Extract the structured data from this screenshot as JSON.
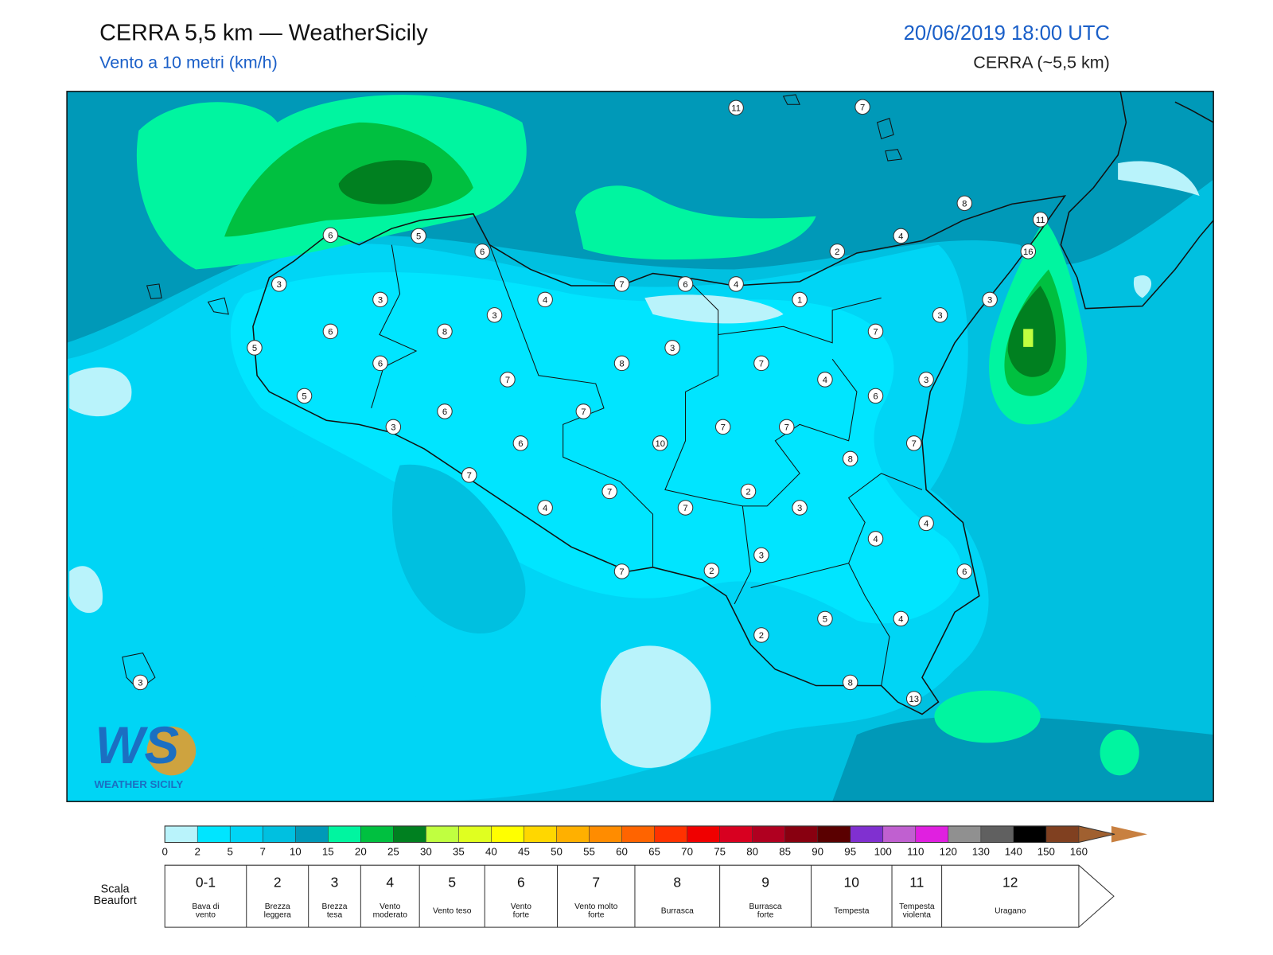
{
  "header": {
    "title": "CERRA 5,5 km — WeatherSicily",
    "subtitle": "Vento a 10 metri (km/h)",
    "date": "20/06/2019 18:00 UTC",
    "model": "CERRA (~5,5 km)"
  },
  "map": {
    "stations": [
      11,
      7,
      8,
      11,
      16,
      4,
      2,
      6,
      5,
      6,
      3,
      3,
      4,
      7,
      6,
      4,
      1,
      3,
      3,
      3,
      6,
      8,
      7,
      5,
      6,
      8,
      3,
      7,
      7,
      4,
      3,
      5,
      6,
      7,
      6,
      3,
      7,
      7,
      6,
      10,
      7,
      8,
      7,
      7,
      2,
      4,
      7,
      3,
      4,
      4,
      3,
      2,
      7,
      6,
      5,
      4,
      2,
      3,
      8,
      13
    ],
    "logo": {
      "mark": "WS",
      "text": "WEATHER SICILY"
    }
  },
  "colorbar": {
    "ticks": [
      0,
      2,
      5,
      7,
      10,
      15,
      20,
      25,
      30,
      35,
      40,
      45,
      50,
      55,
      60,
      65,
      70,
      75,
      80,
      85,
      90,
      95,
      100,
      110,
      120,
      130,
      140,
      150,
      160
    ],
    "colors": [
      "#b9f3fb",
      "#00e5ff",
      "#00d5f5",
      "#00c0e0",
      "#0099b8",
      "#00f5a0",
      "#00c040",
      "#008020",
      "#c0ff40",
      "#e0ff20",
      "#ffff00",
      "#ffd700",
      "#ffb000",
      "#ff8c00",
      "#ff6400",
      "#ff3200",
      "#f00000",
      "#d80020",
      "#b00020",
      "#880010",
      "#5a0000",
      "#8030d0",
      "#c060d0",
      "#e020e0",
      "#909090",
      "#606060",
      "#000000",
      "#804020",
      "#a06030",
      "#c88040"
    ]
  },
  "beaufort": {
    "label": [
      "Scala",
      "Beaufort"
    ],
    "levels": [
      {
        "force": "0-1",
        "description": [
          "Bava di",
          "vento"
        ]
      },
      {
        "force": "2",
        "description": [
          "Brezza",
          "leggera"
        ]
      },
      {
        "force": "3",
        "description": [
          "Brezza",
          "tesa"
        ]
      },
      {
        "force": "4",
        "description": [
          "Vento",
          "moderato"
        ]
      },
      {
        "force": "5",
        "description": [
          "Vento teso"
        ]
      },
      {
        "force": "6",
        "description": [
          "Vento",
          "forte"
        ]
      },
      {
        "force": "7",
        "description": [
          "Vento molto",
          "forte"
        ]
      },
      {
        "force": "8",
        "description": [
          "Burrasca"
        ]
      },
      {
        "force": "9",
        "description": [
          "Burrasca",
          "forte"
        ]
      },
      {
        "force": "10",
        "description": [
          "Tempesta"
        ]
      },
      {
        "force": "11",
        "description": [
          "Tempesta",
          "violenta"
        ]
      },
      {
        "force": "12",
        "description": [
          "Uragano"
        ]
      }
    ]
  }
}
